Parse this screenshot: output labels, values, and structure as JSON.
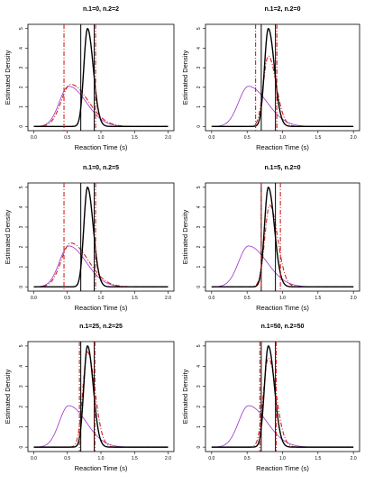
{
  "chart_data": [
    {
      "type": "line",
      "title": "n.1=0, n.2=2",
      "xlabel": "Reaction Time (s)",
      "ylabel": "Estimated Density",
      "xlim": [
        0,
        2
      ],
      "ylim": [
        0,
        5
      ],
      "x_ticks": [
        "0.0",
        "0.5",
        "1.0",
        "1.5",
        "2.0"
      ],
      "y_ticks": [
        "0",
        "1",
        "2",
        "3",
        "4",
        "5"
      ],
      "curves": {
        "true_density": {
          "color": "#000000",
          "style": "solid",
          "mode": 0.8,
          "peak": 5.0
        },
        "estimate_a": {
          "color": "#9933cc",
          "style": "solid",
          "mode": 0.52,
          "peak": 2.05
        },
        "estimate_b": {
          "color": "#cc2222",
          "style": "dashdot",
          "mode": 0.55,
          "peak": 2.15
        }
      },
      "vlines": [
        {
          "x": 0.7,
          "color": "#000000",
          "style": "solid"
        },
        {
          "x": 0.9,
          "color": "#000000",
          "style": "solid"
        },
        {
          "x": 0.45,
          "color": "#cc2222",
          "style": "dashdot"
        },
        {
          "x": 0.92,
          "color": "#cc2222",
          "style": "dashdot"
        }
      ]
    },
    {
      "type": "line",
      "title": "n.1=2, n.2=0",
      "xlabel": "Reaction Time (s)",
      "ylabel": "Estimated Density",
      "xlim": [
        0,
        2
      ],
      "ylim": [
        0,
        5
      ],
      "x_ticks": [
        "0.0",
        "0.5",
        "1.0",
        "1.5",
        "2.0"
      ],
      "y_ticks": [
        "0",
        "1",
        "2",
        "3",
        "4",
        "5"
      ],
      "curves": {
        "true_density": {
          "color": "#000000",
          "style": "solid",
          "mode": 0.8,
          "peak": 5.0
        },
        "estimate_a": {
          "color": "#9933cc",
          "style": "solid",
          "mode": 0.52,
          "peak": 2.05
        },
        "estimate_b": {
          "color": "#cc2222",
          "style": "dashdot",
          "mode": 0.8,
          "peak": 3.6
        }
      },
      "vlines": [
        {
          "x": 0.7,
          "color": "#000000",
          "style": "solid"
        },
        {
          "x": 0.9,
          "color": "#000000",
          "style": "solid"
        },
        {
          "x": 0.62,
          "color": "#cc2222",
          "style": "dashdot"
        },
        {
          "x": 0.92,
          "color": "#cc2222",
          "style": "dashdot"
        }
      ]
    },
    {
      "type": "line",
      "title": "n.1=0, n.2=5",
      "xlabel": "Reaction Time (s)",
      "ylabel": "Estimated Density",
      "xlim": [
        0,
        2
      ],
      "ylim": [
        0,
        5
      ],
      "x_ticks": [
        "0.0",
        "0.5",
        "1.0",
        "1.5",
        "2.0"
      ],
      "y_ticks": [
        "0",
        "1",
        "2",
        "3",
        "4",
        "5"
      ],
      "curves": {
        "true_density": {
          "color": "#000000",
          "style": "solid",
          "mode": 0.8,
          "peak": 5.0
        },
        "estimate_a": {
          "color": "#9933cc",
          "style": "solid",
          "mode": 0.52,
          "peak": 2.05
        },
        "estimate_b": {
          "color": "#cc2222",
          "style": "dashdot",
          "mode": 0.55,
          "peak": 2.2
        }
      },
      "vlines": [
        {
          "x": 0.7,
          "color": "#000000",
          "style": "solid"
        },
        {
          "x": 0.9,
          "color": "#000000",
          "style": "solid"
        },
        {
          "x": 0.45,
          "color": "#cc2222",
          "style": "dashdot"
        },
        {
          "x": 0.92,
          "color": "#cc2222",
          "style": "dashdot"
        }
      ]
    },
    {
      "type": "line",
      "title": "n.1=5, n.2=0",
      "xlabel": "Reaction Time (s)",
      "ylabel": "Estimated Density",
      "xlim": [
        0,
        2
      ],
      "ylim": [
        0,
        5
      ],
      "x_ticks": [
        "0.0",
        "0.5",
        "1.0",
        "1.5",
        "2.0"
      ],
      "y_ticks": [
        "0",
        "1",
        "2",
        "3",
        "4",
        "5"
      ],
      "curves": {
        "true_density": {
          "color": "#000000",
          "style": "solid",
          "mode": 0.8,
          "peak": 5.0
        },
        "estimate_a": {
          "color": "#9933cc",
          "style": "solid",
          "mode": 0.52,
          "peak": 2.05
        },
        "estimate_b": {
          "color": "#cc2222",
          "style": "dashdot",
          "mode": 0.82,
          "peak": 4.1
        }
      },
      "vlines": [
        {
          "x": 0.7,
          "color": "#000000",
          "style": "solid"
        },
        {
          "x": 0.9,
          "color": "#000000",
          "style": "solid"
        },
        {
          "x": 0.7,
          "color": "#cc2222",
          "style": "dashdot"
        },
        {
          "x": 0.97,
          "color": "#cc2222",
          "style": "dashdot"
        }
      ]
    },
    {
      "type": "line",
      "title": "n.1=25, n.2=25",
      "xlabel": "Reaction Time (s)",
      "ylabel": "Estimated Density",
      "xlim": [
        0,
        2
      ],
      "ylim": [
        0,
        5
      ],
      "x_ticks": [
        "0.0",
        "0.5",
        "1.0",
        "1.5",
        "2.0"
      ],
      "y_ticks": [
        "0",
        "1",
        "2",
        "3",
        "4",
        "5"
      ],
      "curves": {
        "true_density": {
          "color": "#000000",
          "style": "solid",
          "mode": 0.8,
          "peak": 5.0
        },
        "estimate_a": {
          "color": "#9933cc",
          "style": "solid",
          "mode": 0.52,
          "peak": 2.05
        },
        "estimate_b": {
          "color": "#cc2222",
          "style": "dashdot",
          "mode": 0.8,
          "peak": 4.7
        }
      },
      "vlines": [
        {
          "x": 0.7,
          "color": "#000000",
          "style": "solid"
        },
        {
          "x": 0.9,
          "color": "#000000",
          "style": "solid"
        },
        {
          "x": 0.68,
          "color": "#cc2222",
          "style": "dashdot"
        },
        {
          "x": 0.91,
          "color": "#cc2222",
          "style": "dashdot"
        }
      ]
    },
    {
      "type": "line",
      "title": "n.1=50, n.2=50",
      "xlabel": "Reaction Time (s)",
      "ylabel": "Estimated Density",
      "xlim": [
        0,
        2
      ],
      "ylim": [
        0,
        5
      ],
      "x_ticks": [
        "0.0",
        "0.5",
        "1.0",
        "1.5",
        "2.0"
      ],
      "y_ticks": [
        "0",
        "1",
        "2",
        "3",
        "4",
        "5"
      ],
      "curves": {
        "true_density": {
          "color": "#000000",
          "style": "solid",
          "mode": 0.8,
          "peak": 5.0
        },
        "estimate_a": {
          "color": "#9933cc",
          "style": "solid",
          "mode": 0.52,
          "peak": 2.05
        },
        "estimate_b": {
          "color": "#cc2222",
          "style": "dashdot",
          "mode": 0.8,
          "peak": 4.4
        }
      },
      "vlines": [
        {
          "x": 0.7,
          "color": "#000000",
          "style": "solid"
        },
        {
          "x": 0.9,
          "color": "#000000",
          "style": "solid"
        },
        {
          "x": 0.68,
          "color": "#cc2222",
          "style": "dashdot"
        },
        {
          "x": 0.91,
          "color": "#cc2222",
          "style": "dashdot"
        }
      ]
    }
  ]
}
